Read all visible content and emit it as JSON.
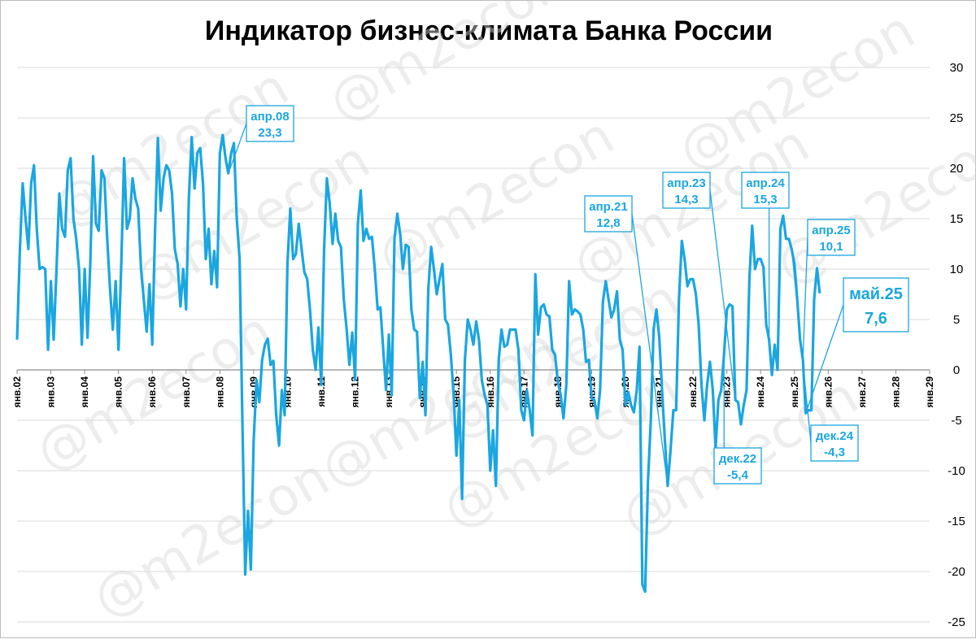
{
  "chart_data": {
    "type": "line",
    "title": "Индикатор бизнес-климата Банка России",
    "xlabel": "",
    "ylabel": "",
    "ylim": [
      -25,
      30
    ],
    "y_ticks": [
      30,
      25,
      20,
      15,
      10,
      5,
      0,
      -5,
      -10,
      -15,
      -20,
      -25
    ],
    "x_start": "янв.02",
    "x_end": "янв.29",
    "x_tick_labels": [
      "янв.02",
      "янв.03",
      "янв.04",
      "янв.05",
      "янв.06",
      "янв.07",
      "янв.08",
      "янв.09",
      "янв.10",
      "янв.11",
      "янв.12",
      "янв.13",
      "янв.14",
      "янв.15",
      "янв.16",
      "янв.17",
      "янв.18",
      "янв.19",
      "янв.20",
      "янв.21",
      "янв.22",
      "янв.23",
      "янв.24",
      "янв.25",
      "янв.26",
      "янв.27",
      "янв.28",
      "янв.29"
    ],
    "grid": true,
    "line_color": "#1aa6e0",
    "series": [
      {
        "values": [
          3.0,
          12.0,
          18.5,
          15.0,
          12.0,
          18.5,
          20.3,
          14.0,
          10.0,
          10.2,
          10.0,
          2.0,
          8.8,
          3.0,
          10.0,
          17.5,
          14.0,
          13.2,
          19.8,
          21.0,
          15.0,
          13.0,
          10.0,
          2.5,
          10.0,
          3.2,
          10.5,
          21.2,
          14.5,
          13.8,
          19.8,
          19.0,
          13.0,
          8.0,
          4.0,
          8.8,
          2.0,
          10.5,
          21.0,
          14.0,
          15.0,
          19.0,
          17.0,
          16.0,
          10.0,
          7.0,
          3.8,
          8.5,
          2.5,
          14.0,
          23.0,
          15.8,
          19.0,
          20.3,
          19.8,
          17.5,
          12.0,
          10.5,
          6.3,
          10.0,
          6.0,
          17.0,
          23.1,
          18.0,
          21.5,
          22.0,
          18.5,
          11.0,
          14.0,
          8.5,
          11.8,
          8.2,
          21.5,
          23.3,
          21.0,
          19.5,
          21.5,
          22.5,
          15.0,
          11.0,
          -5.0,
          -20.3,
          -14.0,
          -19.8,
          -7.0,
          -1.0,
          -3.2,
          1.0,
          2.5,
          3.1,
          0.5,
          0.9,
          -4.5,
          -7.5,
          -2.0,
          -4.5,
          10.5,
          16.0,
          11.0,
          11.5,
          14.5,
          12.0,
          9.7,
          9.0,
          6.0,
          2.0,
          0.0,
          4.2,
          -1.5,
          12.0,
          19.0,
          16.5,
          12.5,
          15.5,
          12.8,
          12.2,
          7.0,
          4.0,
          0.5,
          3.7,
          -1.0,
          14.5,
          17.8,
          12.8,
          14.0,
          13.0,
          13.2,
          10.0,
          6.0,
          6.2,
          2.0,
          -2.0,
          3.5,
          -2.5,
          13.0,
          15.5,
          13.5,
          10.0,
          12.4,
          12.2,
          6.0,
          4.0,
          3.8,
          -2.8,
          0.8,
          -4.5,
          8.0,
          12.2,
          10.0,
          7.5,
          9.0,
          10.5,
          5.0,
          4.5,
          1.5,
          -2.5,
          -8.5,
          -3.0,
          -12.8,
          1.0,
          5.0,
          4.0,
          2.5,
          4.8,
          3.0,
          -1.0,
          -2.5,
          -3.5,
          -10.0,
          -6.0,
          -11.5,
          1.0,
          4.0,
          2.3,
          2.5,
          4.0,
          4.0,
          4.0,
          2.0,
          -4.0,
          -5.0,
          -2.0,
          -4.0,
          -6.5,
          9.5,
          3.5,
          6.2,
          6.5,
          5.5,
          5.3,
          2.0,
          1.5,
          -1.2,
          -2.5,
          -4.8,
          -1.5,
          8.8,
          5.5,
          6.0,
          5.8,
          5.5,
          4.0,
          0.8,
          1.0,
          -2.8,
          -3.0,
          -4.8,
          -2.0,
          6.8,
          8.8,
          7.0,
          5.2,
          6.0,
          7.8,
          3.0,
          2.0,
          -3.5,
          -2.2,
          -3.5,
          -4.2,
          -2.0,
          2.3,
          -21.3,
          -22.0,
          -11.0,
          -5.0,
          4.0,
          6.0,
          3.2,
          -2.0,
          -7.0,
          -11.5,
          -8.0,
          -4.0,
          -4.0,
          7.0,
          12.8,
          11.0,
          8.3,
          9.0,
          9.0,
          7.5,
          4.5,
          -1.5,
          -5.0,
          -1.5,
          0.8,
          -2.0,
          -7.8,
          -3.0,
          -2.0,
          1.5,
          6.0,
          6.5,
          6.3,
          -3.0,
          -3.2,
          -5.4,
          -3.5,
          -2.0,
          9.0,
          14.3,
          10.0,
          11.0,
          11.0,
          10.2,
          4.5,
          3.0,
          -0.5,
          2.5,
          0.0,
          14.0,
          15.3,
          13.0,
          13.0,
          12.0,
          10.5,
          7.0,
          3.0,
          1.0,
          -4.3,
          -4.0,
          -4.0,
          7.0,
          10.1,
          7.6
        ]
      }
    ],
    "annotations": [
      {
        "label": "апр.08",
        "value": "23,3"
      },
      {
        "label": "апр.21",
        "value": "12,8"
      },
      {
        "label": "апр.23",
        "value": "14,3"
      },
      {
        "label": "апр.24",
        "value": "15,3"
      },
      {
        "label": "апр.25",
        "value": "10,1"
      },
      {
        "label": "дек.22",
        "value": "-5,4"
      },
      {
        "label": "дек.24",
        "value": "-4,3"
      },
      {
        "label": "май.25",
        "value": "7,6"
      }
    ],
    "watermark": "@m2econ"
  }
}
